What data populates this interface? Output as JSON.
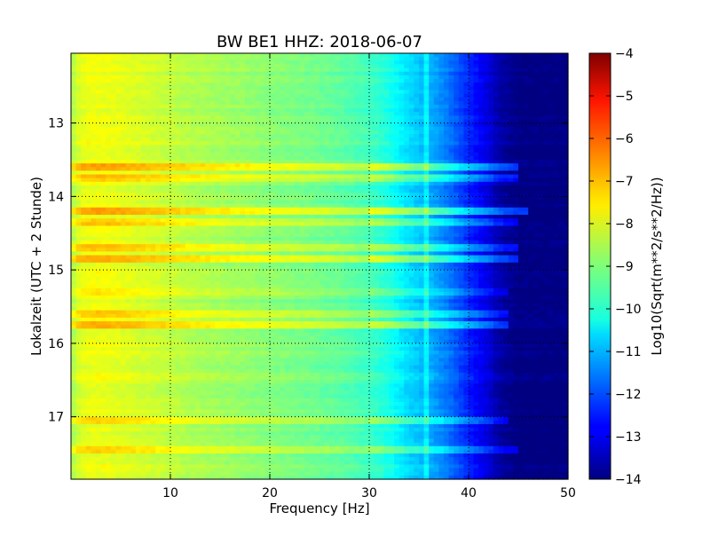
{
  "chart_data": {
    "type": "heatmap",
    "title": "BW BE1 HHZ: 2018-06-07",
    "xlabel": "Frequency [Hz]",
    "ylabel": "Lokalzeit (UTC + 2 Stunde)",
    "xlim": [
      0,
      50
    ],
    "ylim": [
      12.05,
      17.85
    ],
    "y_inverted": true,
    "grid": true,
    "x_ticks": [
      10,
      20,
      30,
      40,
      50
    ],
    "y_ticks": [
      13,
      14,
      15,
      16,
      17
    ],
    "colormap": "jet",
    "colorbar": {
      "label": "Log10(Sqrt(m**2/s**2/Hz))",
      "range": [
        -14,
        -4
      ],
      "ticks": [
        -4,
        -5,
        -6,
        -7,
        -8,
        -9,
        -10,
        -11,
        -12,
        -13,
        -14
      ]
    },
    "spectrum_profile": {
      "frequency_hz": [
        0,
        1,
        2,
        3,
        5,
        8,
        12,
        16,
        20,
        24,
        27,
        30,
        32,
        34,
        36,
        38,
        40,
        42,
        43,
        45,
        50
      ],
      "log10_amplitude": [
        -8.6,
        -8.0,
        -7.9,
        -7.9,
        -8.0,
        -8.2,
        -8.5,
        -8.7,
        -8.9,
        -9.1,
        -9.3,
        -9.6,
        -10.0,
        -10.6,
        -11.0,
        -11.6,
        -12.4,
        -13.1,
        -13.6,
        -14.0,
        -14.0
      ]
    },
    "bands": [
      {
        "time": 13.6,
        "log10_boost": 1.0,
        "max_freq_hz": 45
      },
      {
        "time": 13.75,
        "log10_boost": 0.8,
        "max_freq_hz": 45
      },
      {
        "time": 14.2,
        "log10_boost": 1.2,
        "max_freq_hz": 46
      },
      {
        "time": 14.35,
        "log10_boost": 0.7,
        "max_freq_hz": 45
      },
      {
        "time": 14.7,
        "log10_boost": 0.8,
        "max_freq_hz": 45
      },
      {
        "time": 14.85,
        "log10_boost": 1.0,
        "max_freq_hz": 45
      },
      {
        "time": 15.3,
        "log10_boost": 0.5,
        "max_freq_hz": 44
      },
      {
        "time": 15.6,
        "log10_boost": 0.6,
        "max_freq_hz": 44
      },
      {
        "time": 15.75,
        "log10_boost": 0.8,
        "max_freq_hz": 44
      },
      {
        "time": 17.05,
        "log10_boost": 0.7,
        "max_freq_hz": 44
      },
      {
        "time": 17.45,
        "log10_boost": 0.6,
        "max_freq_hz": 45
      }
    ]
  }
}
